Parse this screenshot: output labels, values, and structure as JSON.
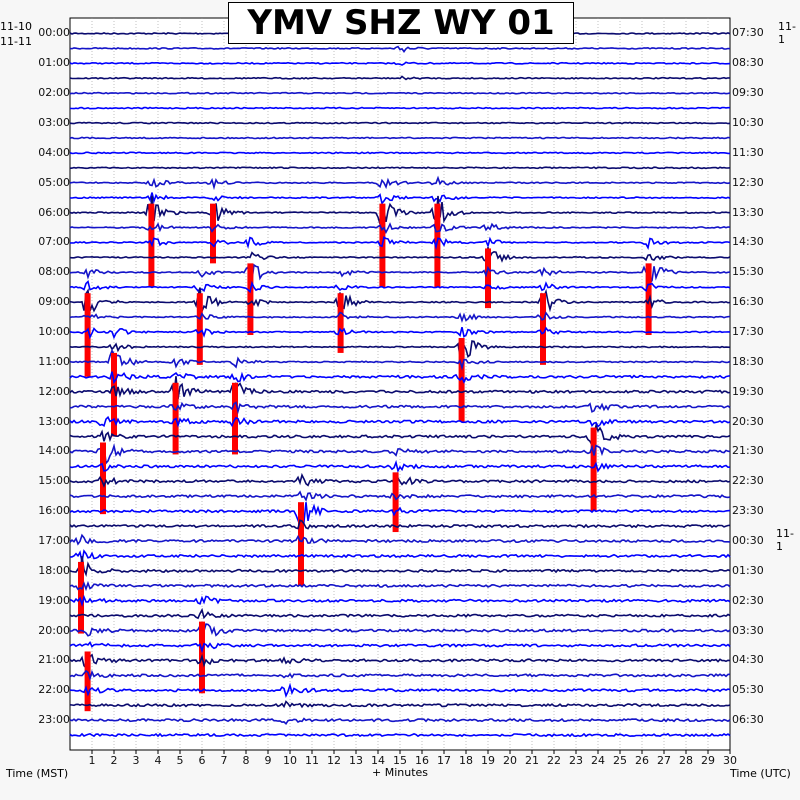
{
  "chart_data": {
    "type": "helicorder",
    "title": "YMV SHZ WY 01",
    "xlabel": "+ Minutes",
    "left_axis_label": "Time (MST)",
    "right_axis_label": "Time (UTC)",
    "x_ticks": [
      "1",
      "2",
      "3",
      "4",
      "5",
      "6",
      "7",
      "8",
      "9",
      "10",
      "11",
      "12",
      "13",
      "14",
      "15",
      "16",
      "17",
      "18",
      "19",
      "20",
      "21",
      "22",
      "23",
      "24",
      "25",
      "26",
      "27",
      "28",
      "29",
      "30"
    ],
    "xlim": [
      0,
      30
    ],
    "left_dates": [
      "11-10",
      "11-11"
    ],
    "right_dates": [
      "11-1",
      "11-1"
    ],
    "left_times": [
      "00:00",
      "01:00",
      "02:00",
      "03:00",
      "04:00",
      "05:00",
      "06:00",
      "07:00",
      "08:00",
      "09:00",
      "10:00",
      "11:00",
      "12:00",
      "13:00",
      "14:00",
      "15:00",
      "16:00",
      "17:00",
      "18:00",
      "19:00",
      "20:00",
      "21:00",
      "22:00",
      "23:00"
    ],
    "right_times": [
      "07:30",
      "08:30",
      "09:30",
      "10:30",
      "11:30",
      "12:30",
      "13:30",
      "14:30",
      "15:30",
      "16:30",
      "17:30",
      "18:30",
      "19:30",
      "20:30",
      "21:30",
      "22:30",
      "23:30",
      "00:30",
      "01:30",
      "02:30",
      "03:30",
      "04:30",
      "05:30",
      "06:30"
    ],
    "trace_colors": [
      "#0a0a6e",
      "#1414c8",
      "#0000ff"
    ],
    "clip_color": "#ff0000",
    "n_traces": 48,
    "minutes_per_trace": 30,
    "events": [
      {
        "minute": 15.0,
        "trace": 1,
        "amp": 0.9
      },
      {
        "minute": 3.7,
        "trace": 12,
        "amp": 3.5
      },
      {
        "minute": 6.5,
        "trace": 12,
        "amp": 2.5
      },
      {
        "minute": 14.2,
        "trace": 12,
        "amp": 3.5
      },
      {
        "minute": 16.7,
        "trace": 12,
        "amp": 3.5
      },
      {
        "minute": 8.2,
        "trace": 16,
        "amp": 3.0
      },
      {
        "minute": 19.0,
        "trace": 15,
        "amp": 2.5
      },
      {
        "minute": 26.3,
        "trace": 16,
        "amp": 3.0
      },
      {
        "minute": 0.8,
        "trace": 18,
        "amp": 3.5
      },
      {
        "minute": 5.9,
        "trace": 18,
        "amp": 3.0
      },
      {
        "minute": 12.3,
        "trace": 18,
        "amp": 2.5
      },
      {
        "minute": 21.5,
        "trace": 18,
        "amp": 3.0
      },
      {
        "minute": 17.8,
        "trace": 21,
        "amp": 3.5
      },
      {
        "minute": 2.0,
        "trace": 22,
        "amp": 3.5
      },
      {
        "minute": 4.8,
        "trace": 24,
        "amp": 3.0
      },
      {
        "minute": 7.5,
        "trace": 24,
        "amp": 3.0
      },
      {
        "minute": 23.8,
        "trace": 27,
        "amp": 3.5
      },
      {
        "minute": 1.5,
        "trace": 28,
        "amp": 3.0
      },
      {
        "minute": 10.5,
        "trace": 32,
        "amp": 3.5
      },
      {
        "minute": 14.8,
        "trace": 30,
        "amp": 2.5
      },
      {
        "minute": 0.5,
        "trace": 36,
        "amp": 3.0
      },
      {
        "minute": 6.0,
        "trace": 40,
        "amp": 3.0
      },
      {
        "minute": 0.8,
        "trace": 42,
        "amp": 2.5
      },
      {
        "minute": 9.8,
        "trace": 44,
        "amp": 1.5
      }
    ]
  }
}
